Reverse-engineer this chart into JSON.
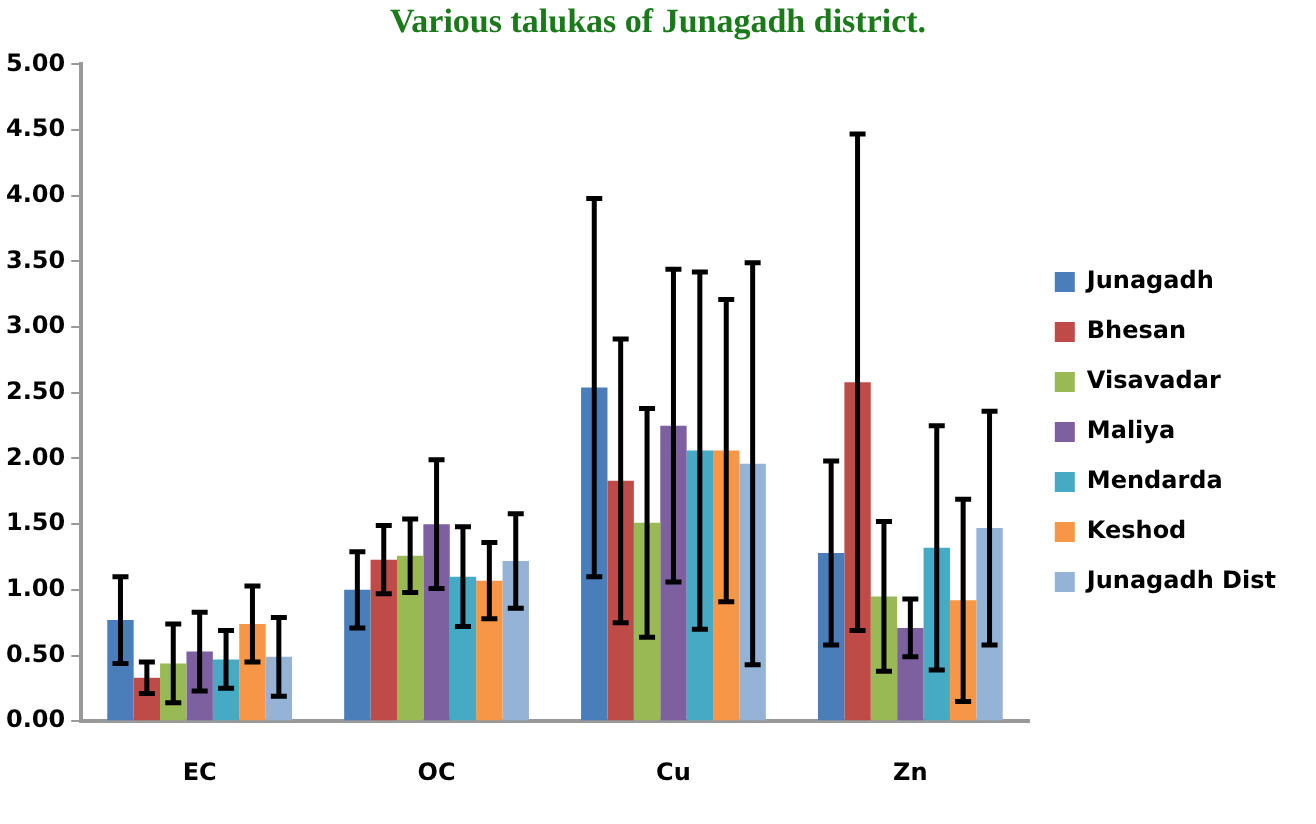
{
  "chart_data": {
    "type": "bar",
    "title": "Various talukas of Junagadh district.",
    "categories": [
      "EC",
      "OC",
      "Cu",
      "Zn"
    ],
    "series": [
      {
        "name": "Junagadh",
        "color": "#4a7ebb",
        "values": [
          0.77,
          1.0,
          2.54,
          1.28
        ],
        "errors": [
          0.33,
          0.29,
          1.44,
          0.7
        ]
      },
      {
        "name": "Bhesan",
        "color": "#be4b48",
        "values": [
          0.33,
          1.23,
          1.83,
          2.58
        ],
        "errors": [
          0.12,
          0.26,
          1.08,
          1.89
        ]
      },
      {
        "name": "Visavadar",
        "color": "#98b954",
        "values": [
          0.44,
          1.26,
          1.51,
          0.95
        ],
        "errors": [
          0.3,
          0.28,
          0.87,
          0.57
        ]
      },
      {
        "name": "Maliya",
        "color": "#7d60a0",
        "values": [
          0.53,
          1.5,
          2.25,
          0.71
        ],
        "errors": [
          0.3,
          0.49,
          1.19,
          0.22
        ]
      },
      {
        "name": "Mendarda",
        "color": "#46aac5",
        "values": [
          0.47,
          1.1,
          2.06,
          1.32
        ],
        "errors": [
          0.22,
          0.38,
          1.36,
          0.93
        ]
      },
      {
        "name": "Keshod",
        "color": "#f79646",
        "values": [
          0.74,
          1.07,
          2.06,
          0.92
        ],
        "errors": [
          0.29,
          0.29,
          1.15,
          0.77
        ]
      },
      {
        "name": "Junagadh Dist",
        "color": "#95b3d7",
        "values": [
          0.49,
          1.22,
          1.96,
          1.47
        ],
        "errors": [
          0.3,
          0.36,
          1.53,
          0.89
        ]
      }
    ],
    "ylim": [
      0,
      5
    ],
    "yticks": [
      {
        "value": 0,
        "label": "0.00"
      },
      {
        "value": 0.5,
        "label": "0.50"
      },
      {
        "value": 1,
        "label": "1.00"
      },
      {
        "value": 1.5,
        "label": "1.50"
      },
      {
        "value": 2,
        "label": "2.00"
      },
      {
        "value": 2.5,
        "label": "2.50"
      },
      {
        "value": 3,
        "label": "3.00"
      },
      {
        "value": 3.5,
        "label": "3.50"
      },
      {
        "value": 4,
        "label": "4.00"
      },
      {
        "value": 4.5,
        "label": "4.50"
      },
      {
        "value": 5,
        "label": "5.00"
      }
    ],
    "grid": false,
    "legend": "right"
  }
}
